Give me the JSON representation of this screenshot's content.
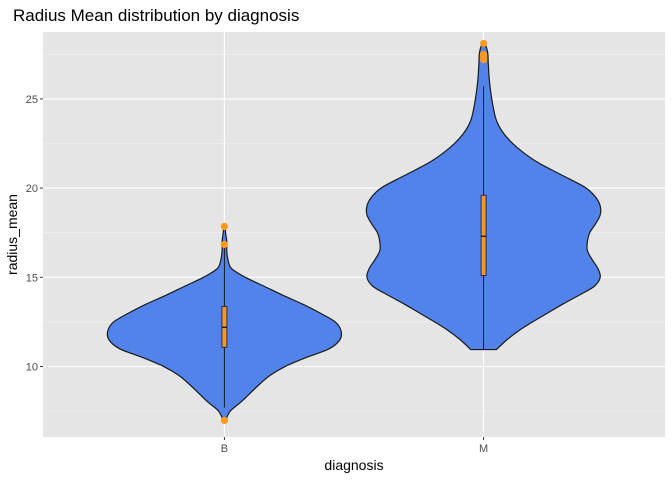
{
  "chart_data": {
    "type": "violin",
    "title": "Radius Mean distribution by diagnosis",
    "xlabel": "diagnosis",
    "ylabel": "radius_mean",
    "categories": [
      "B",
      "M"
    ],
    "ylim": [
      6.05,
      28.75
    ],
    "yticks": [
      10,
      15,
      20,
      25
    ],
    "grid": true,
    "background": "#e5e5e5",
    "colors": {
      "violin_fill": "#5283eb",
      "violin_stroke": "#1a1a1a",
      "box_fill": "#f0962d",
      "outlier": "#ff9a1a"
    },
    "groups": [
      {
        "category": "B",
        "min": 6.98,
        "max": 17.85,
        "box": {
          "q1": 11.08,
          "median": 12.2,
          "q3": 13.37,
          "whisker_low": 7.7,
          "whisker_high": 16.8
        },
        "outliers": [
          6.98,
          16.84,
          17.85
        ],
        "density": [
          {
            "y": 6.98,
            "w": 0.01
          },
          {
            "y": 7.5,
            "w": 0.05
          },
          {
            "y": 8.0,
            "w": 0.14
          },
          {
            "y": 8.5,
            "w": 0.22
          },
          {
            "y": 9.0,
            "w": 0.3
          },
          {
            "y": 9.5,
            "w": 0.39
          },
          {
            "y": 10.0,
            "w": 0.52
          },
          {
            "y": 10.5,
            "w": 0.7
          },
          {
            "y": 11.0,
            "w": 0.9
          },
          {
            "y": 11.5,
            "w": 0.99
          },
          {
            "y": 12.0,
            "w": 1.0
          },
          {
            "y": 12.5,
            "w": 0.95
          },
          {
            "y": 13.0,
            "w": 0.82
          },
          {
            "y": 13.5,
            "w": 0.67
          },
          {
            "y": 14.0,
            "w": 0.5
          },
          {
            "y": 14.5,
            "w": 0.34
          },
          {
            "y": 15.0,
            "w": 0.18
          },
          {
            "y": 15.5,
            "w": 0.06
          },
          {
            "y": 16.0,
            "w": 0.03
          },
          {
            "y": 16.5,
            "w": 0.02
          },
          {
            "y": 17.0,
            "w": 0.02
          },
          {
            "y": 17.5,
            "w": 0.01
          },
          {
            "y": 17.85,
            "w": 0.005
          }
        ]
      },
      {
        "category": "M",
        "min": 10.95,
        "max": 28.11,
        "box": {
          "q1": 15.1,
          "median": 17.3,
          "q3": 19.6,
          "whisker_low": 10.95,
          "whisker_high": 25.7
        },
        "outliers": [
          27.2,
          27.4,
          27.5,
          28.11
        ],
        "density": [
          {
            "y": 10.95,
            "w": 0.11
          },
          {
            "y": 11.5,
            "w": 0.2
          },
          {
            "y": 12.0,
            "w": 0.3
          },
          {
            "y": 12.5,
            "w": 0.42
          },
          {
            "y": 13.0,
            "w": 0.55
          },
          {
            "y": 13.5,
            "w": 0.68
          },
          {
            "y": 14.0,
            "w": 0.82
          },
          {
            "y": 14.5,
            "w": 0.95
          },
          {
            "y": 15.0,
            "w": 1.0
          },
          {
            "y": 15.5,
            "w": 0.98
          },
          {
            "y": 16.0,
            "w": 0.93
          },
          {
            "y": 16.5,
            "w": 0.89
          },
          {
            "y": 17.0,
            "w": 0.89
          },
          {
            "y": 17.5,
            "w": 0.91
          },
          {
            "y": 18.0,
            "w": 0.96
          },
          {
            "y": 18.5,
            "w": 1.0
          },
          {
            "y": 19.0,
            "w": 1.0
          },
          {
            "y": 19.5,
            "w": 0.96
          },
          {
            "y": 20.0,
            "w": 0.88
          },
          {
            "y": 20.5,
            "w": 0.74
          },
          {
            "y": 21.0,
            "w": 0.59
          },
          {
            "y": 21.5,
            "w": 0.45
          },
          {
            "y": 22.0,
            "w": 0.34
          },
          {
            "y": 22.5,
            "w": 0.25
          },
          {
            "y": 23.0,
            "w": 0.18
          },
          {
            "y": 23.5,
            "w": 0.13
          },
          {
            "y": 24.0,
            "w": 0.1
          },
          {
            "y": 25.0,
            "w": 0.07
          },
          {
            "y": 26.0,
            "w": 0.05
          },
          {
            "y": 27.0,
            "w": 0.04
          },
          {
            "y": 27.6,
            "w": 0.035
          },
          {
            "y": 28.11,
            "w": 0.01
          }
        ]
      }
    ]
  }
}
